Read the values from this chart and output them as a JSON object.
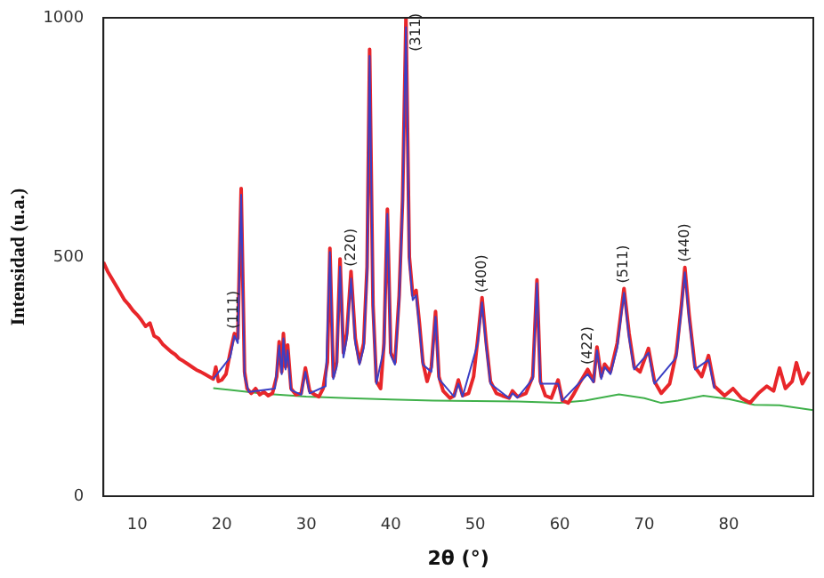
{
  "chart_data": {
    "type": "line",
    "xlabel": "2θ (°)",
    "ylabel": "Intensidad (u.a.)",
    "xlim": [
      6,
      90
    ],
    "ylim": [
      0,
      1000
    ],
    "xticks": [
      10,
      20,
      30,
      40,
      50,
      60,
      70,
      80
    ],
    "yticks": [
      0,
      500,
      1000
    ],
    "grid": false,
    "legend": false,
    "marker": "none",
    "line_style": "solid",
    "series": [
      {
        "color": "#e8262a",
        "x": [
          6,
          6.5,
          7,
          7.5,
          8,
          8.5,
          9,
          9.5,
          10,
          10.5,
          11,
          11.5,
          12,
          12.5,
          13,
          13.5,
          14,
          14.5,
          15,
          15.5,
          16,
          16.5,
          17,
          17.5,
          18,
          18.5,
          19,
          19.3,
          19.6,
          20,
          20.5,
          21,
          21.5,
          21.9,
          22.3,
          22.7,
          23,
          23.5,
          24,
          24.5,
          25,
          25.5,
          26,
          26.5,
          26.8,
          27.1,
          27.3,
          27.55,
          27.8,
          28.2,
          28.8,
          29.4,
          29.9,
          30.4,
          31,
          31.5,
          32,
          32.5,
          32.8,
          33.2,
          33.6,
          34,
          34.4,
          34.8,
          35.3,
          35.8,
          36.3,
          36.8,
          37.2,
          37.5,
          37.9,
          38.3,
          38.8,
          39.2,
          39.6,
          40,
          40.5,
          41,
          41.4,
          41.8,
          42.2,
          42.6,
          43,
          43.4,
          43.8,
          44.3,
          44.8,
          45.3,
          45.7,
          46.2,
          47,
          47.5,
          48,
          48.5,
          49.2,
          49.8,
          50.3,
          50.8,
          51.3,
          51.8,
          52.5,
          53.2,
          54,
          54.4,
          55,
          56,
          56.8,
          57.3,
          57.7,
          58.3,
          59,
          59.8,
          60.3,
          61,
          61.7,
          62.3,
          63.3,
          64,
          64.4,
          64.9,
          65.3,
          66,
          66.8,
          67.6,
          68.2,
          68.8,
          69.5,
          70.5,
          71.2,
          72,
          73,
          73.8,
          74.4,
          74.8,
          75.3,
          76,
          76.8,
          77.6,
          78.3,
          79.5,
          80.5,
          81.5,
          82.5,
          83.5,
          84.5,
          85.3,
          86,
          86.7,
          87.5,
          88,
          88.7,
          89.5
        ],
        "values": [
          489,
          470,
          455,
          440,
          425,
          410,
          400,
          388,
          379,
          368,
          355,
          362,
          335,
          330,
          318,
          310,
          302,
          296,
          287,
          282,
          276,
          270,
          264,
          260,
          255,
          250,
          245,
          270,
          240,
          243,
          255,
          300,
          340,
          330,
          643,
          260,
          225,
          215,
          225,
          212,
          218,
          210,
          215,
          250,
          323,
          260,
          340,
          270,
          316,
          225,
          212,
          215,
          268,
          220,
          212,
          208,
          225,
          280,
          518,
          250,
          280,
          496,
          300,
          340,
          470,
          330,
          280,
          320,
          480,
          934,
          400,
          240,
          225,
          320,
          600,
          300,
          280,
          420,
          620,
          1000,
          500,
          420,
          430,
          360,
          280,
          240,
          270,
          386,
          250,
          220,
          205,
          210,
          243,
          210,
          215,
          250,
          330,
          415,
          320,
          240,
          215,
          210,
          205,
          220,
          208,
          215,
          250,
          452,
          240,
          210,
          205,
          243,
          200,
          195,
          215,
          235,
          265,
          240,
          312,
          250,
          276,
          260,
          320,
          434,
          340,
          270,
          260,
          309,
          240,
          215,
          235,
          300,
          400,
          478,
          380,
          270,
          250,
          294,
          230,
          210,
          225,
          205,
          195,
          215,
          230,
          220,
          268,
          225,
          240,
          279,
          235,
          260
        ]
      },
      {
        "color": "#3b3fc4",
        "x": [
          19,
          21,
          21.5,
          21.9,
          22.3,
          22.7,
          23.2,
          26.3,
          26.8,
          27.1,
          27.3,
          27.55,
          27.8,
          28.2,
          29.4,
          29.9,
          30.4,
          32.3,
          32.8,
          33.2,
          33.6,
          34,
          34.4,
          34.8,
          35.3,
          35.8,
          36.3,
          36.8,
          37.2,
          37.5,
          37.9,
          38.3,
          39.2,
          39.6,
          40,
          40.5,
          41,
          41.4,
          41.8,
          42.2,
          42.6,
          43,
          43.4,
          43.8,
          44.8,
          45.3,
          45.7,
          47.5,
          48,
          48.5,
          50.3,
          50.8,
          51.3,
          51.8,
          54,
          54.4,
          55,
          56.8,
          57.3,
          57.7,
          59.8,
          60.3,
          63.3,
          64,
          64.4,
          64.9,
          65.3,
          66,
          66.8,
          67.6,
          68.2,
          68.8,
          70.5,
          71.2,
          73.8,
          74.4,
          74.8,
          75.3,
          76,
          77.6,
          78.3
        ],
        "values": [
          245,
          290,
          335,
          320,
          630,
          250,
          218,
          225,
          315,
          255,
          330,
          265,
          305,
          222,
          212,
          260,
          215,
          230,
          510,
          245,
          270,
          480,
          290,
          330,
          455,
          320,
          275,
          310,
          470,
          920,
          390,
          235,
          310,
          590,
          295,
          275,
          410,
          610,
          980,
          490,
          410,
          420,
          350,
          275,
          260,
          375,
          245,
          208,
          235,
          208,
          320,
          405,
          310,
          235,
          205,
          215,
          206,
          245,
          445,
          235,
          235,
          200,
          255,
          238,
          305,
          245,
          270,
          255,
          310,
          425,
          330,
          265,
          300,
          235,
          290,
          390,
          468,
          370,
          265,
          285,
          225
        ]
      },
      {
        "color": "#3fb04a",
        "x": [
          19,
          25,
          30,
          35,
          40,
          45,
          50,
          55,
          60,
          63,
          67,
          70,
          72,
          74,
          77,
          80,
          83,
          86,
          90
        ],
        "values": [
          226,
          214,
          208,
          205,
          202,
          200,
          199,
          198,
          195,
          200,
          213,
          205,
          195,
          200,
          210,
          203,
          191,
          190,
          180
        ]
      }
    ],
    "annotations": [
      {
        "text": "(111)",
        "x": 21.4,
        "y": 350
      },
      {
        "text": "(220)",
        "x": 35.3,
        "y": 480
      },
      {
        "text": "(311)",
        "x": 43,
        "y": 930
      },
      {
        "text": "(400)",
        "x": 50.8,
        "y": 425
      },
      {
        "text": "(422)",
        "x": 63.3,
        "y": 275
      },
      {
        "text": "(511)",
        "x": 67.6,
        "y": 445
      },
      {
        "text": "(440)",
        "x": 74.8,
        "y": 490
      }
    ]
  }
}
